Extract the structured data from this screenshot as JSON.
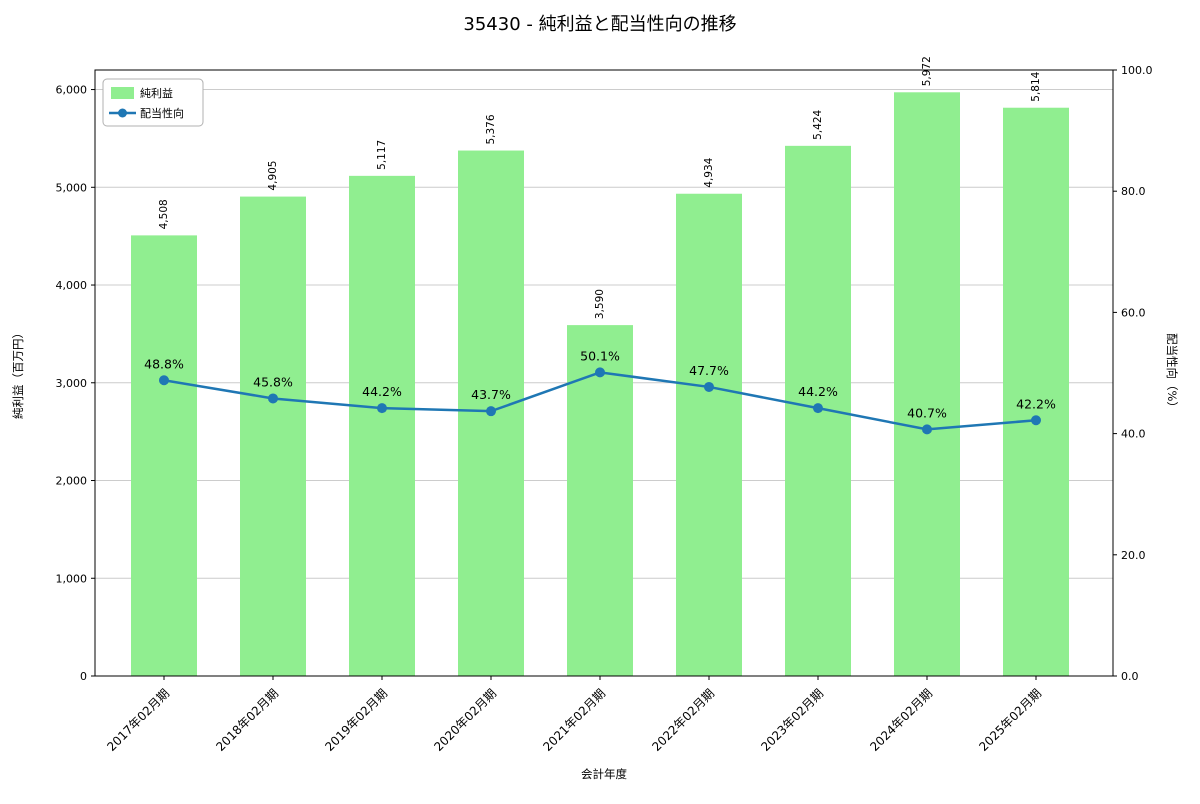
{
  "chart_data": {
    "type": "bar+line",
    "title": "35430 - 純利益と配当性向の推移",
    "xlabel": "会計年度",
    "ylabel_left": "純利益（百万円）",
    "ylabel_right": "配当性向（%）",
    "categories": [
      "2017年02月期",
      "2018年02月期",
      "2019年02月期",
      "2020年02月期",
      "2021年02月期",
      "2022年02月期",
      "2023年02月期",
      "2024年02月期",
      "2025年02月期"
    ],
    "series": [
      {
        "name": "純利益",
        "type": "bar",
        "axis": "left",
        "color": "#90ee90",
        "values": [
          4508,
          4905,
          5117,
          5376,
          3590,
          4934,
          5424,
          5972,
          5814
        ],
        "value_labels": [
          "4,508",
          "4,905",
          "5,117",
          "5,376",
          "3,590",
          "4,934",
          "5,424",
          "5,972",
          "5,814"
        ]
      },
      {
        "name": "配当性向",
        "type": "line",
        "axis": "right",
        "color": "#1f77b4",
        "values": [
          48.8,
          45.8,
          44.2,
          43.7,
          50.1,
          47.7,
          44.2,
          40.7,
          42.2
        ],
        "value_labels": [
          "48.8%",
          "45.8%",
          "44.2%",
          "43.7%",
          "50.1%",
          "47.7%",
          "44.2%",
          "40.7%",
          "42.2%"
        ]
      }
    ],
    "ylim_left": [
      0,
      6200
    ],
    "ylim_right": [
      0,
      100
    ],
    "yticks_left": {
      "values": [
        0,
        1000,
        2000,
        3000,
        4000,
        5000,
        6000
      ],
      "labels": [
        "0",
        "1,000",
        "2,000",
        "3,000",
        "4,000",
        "5,000",
        "6,000"
      ]
    },
    "yticks_right": {
      "values": [
        0,
        20,
        40,
        60,
        80,
        100
      ],
      "labels": [
        "0.0",
        "20.0",
        "40.0",
        "60.0",
        "80.0",
        "100.0"
      ]
    },
    "legend": {
      "position": "upper-left",
      "entries": [
        "純利益",
        "配当性向"
      ]
    },
    "grid": "horizontal",
    "grid_color": "#cccccc"
  }
}
